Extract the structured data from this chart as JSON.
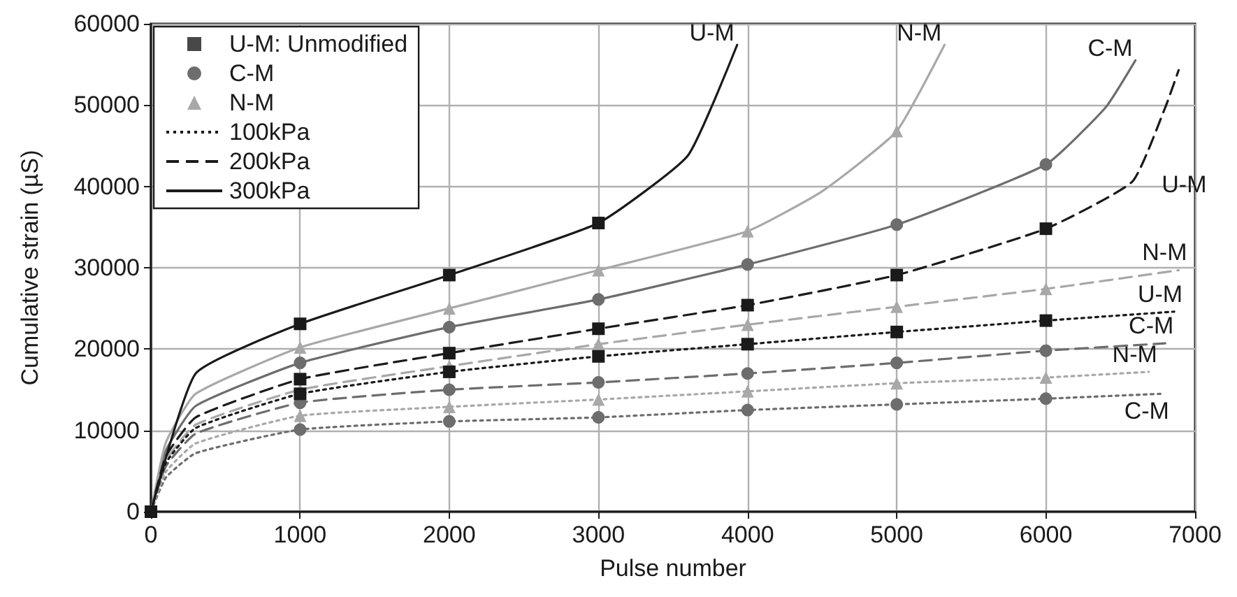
{
  "chart_data": {
    "type": "line",
    "xlabel": "Pulse number",
    "ylabel": "Cumulative strain (µS)",
    "xlim": [
      0,
      7000
    ],
    "xticks": [
      0,
      1000,
      2000,
      3000,
      4000,
      5000,
      6000,
      7000
    ],
    "ylim": [
      0,
      60000
    ],
    "yticks": [
      0,
      10000,
      20000,
      30000,
      40000,
      50000,
      60000
    ],
    "grid": true,
    "legend": "top left",
    "series": [
      {
        "name": "U-M",
        "color": "#1a1a1a",
        "marker": "square",
        "line_style": "solid",
        "x": [
          0,
          300,
          1000,
          2000,
          3000,
          3600,
          3930
        ],
        "values": [
          0,
          17000,
          23100,
          29100,
          35500,
          43800,
          57400
        ]
      },
      {
        "name": "N-M",
        "color": "#a8a8a8",
        "marker": "triangle",
        "line_style": "solid",
        "x": [
          0,
          100,
          300,
          1000,
          2000,
          3000,
          4000,
          4500,
          5000,
          5320
        ],
        "values": [
          0,
          8500,
          14500,
          20200,
          25000,
          29700,
          34500,
          39400,
          46800,
          57400
        ]
      },
      {
        "name": "C-M",
        "color": "#6d6d6d",
        "marker": "circle",
        "line_style": "solid",
        "x": [
          0,
          100,
          300,
          1000,
          2000,
          3000,
          4000,
          5000,
          6000,
          6400,
          6600
        ],
        "values": [
          0,
          7500,
          13000,
          18300,
          22700,
          26100,
          30400,
          35300,
          42700,
          49700,
          55500
        ]
      },
      {
        "name": "U-M",
        "color": "#1a1a1a",
        "marker": "square",
        "line_style": "dashed",
        "x": [
          0,
          100,
          300,
          1000,
          2000,
          3000,
          4000,
          5000,
          6000,
          6580,
          6800,
          6890
        ],
        "values": [
          0,
          6800,
          11600,
          16300,
          19500,
          22500,
          25400,
          29100,
          34800,
          40600,
          49700,
          54300
        ]
      },
      {
        "name": "N-M",
        "color": "#a8a8a8",
        "marker": "triangle",
        "line_style": "dashed",
        "x": [
          0,
          100,
          300,
          1000,
          2000,
          3000,
          4000,
          5000,
          6000,
          6890
        ],
        "values": [
          0,
          6300,
          10700,
          15000,
          17900,
          20600,
          23000,
          25200,
          27400,
          29700
        ]
      },
      {
        "name": "U-M",
        "color": "#1a1a1a",
        "marker": "square",
        "line_style": "dotted",
        "x": [
          0,
          100,
          300,
          1000,
          2000,
          3000,
          4000,
          5000,
          6000,
          6860
        ],
        "values": [
          0,
          6000,
          10300,
          14500,
          17200,
          19100,
          20600,
          22100,
          23500,
          24600
        ]
      },
      {
        "name": "C-M",
        "color": "#6d6d6d",
        "marker": "circle",
        "line_style": "dashed",
        "x": [
          0,
          100,
          300,
          1000,
          2000,
          3000,
          4000,
          5000,
          6000,
          6800
        ],
        "values": [
          0,
          5600,
          9600,
          13400,
          15000,
          15900,
          17000,
          18300,
          19800,
          20700
        ]
      },
      {
        "name": "N-M",
        "color": "#a8a8a8",
        "marker": "triangle",
        "line_style": "dotted",
        "x": [
          0,
          100,
          300,
          1000,
          2000,
          3000,
          4000,
          5000,
          6000,
          6690
        ],
        "values": [
          0,
          4900,
          8400,
          11800,
          12900,
          13800,
          14800,
          15800,
          16500,
          17200
        ]
      },
      {
        "name": "C-M",
        "color": "#6d6d6d",
        "marker": "circle",
        "line_style": "dotted",
        "x": [
          0,
          100,
          300,
          1000,
          2000,
          3000,
          4000,
          5000,
          6000,
          6770
        ],
        "values": [
          0,
          4200,
          7200,
          10100,
          11100,
          11600,
          12500,
          13200,
          13900,
          14500
        ]
      },
      {
        "name": "U-M: Unmodified",
        "type": "scatter",
        "color": "#1a1a1a",
        "marker": "square"
      },
      {
        "name": "C-M",
        "type": "scatter",
        "color": "#6d6d6d",
        "marker": "circle"
      },
      {
        "name": "N-M",
        "type": "scatter",
        "color": "#a8a8a8",
        "marker": "triangle"
      },
      {
        "name": "100kPa",
        "color": "#1a1a1a",
        "marker": "none",
        "line_style": "dotted"
      },
      {
        "name": "200kPa",
        "color": "#1a1a1a",
        "marker": "none",
        "line_style": "dashed"
      },
      {
        "name": "300kPa",
        "color": "#1a1a1a",
        "marker": "none",
        "line_style": "solid"
      }
    ]
  }
}
